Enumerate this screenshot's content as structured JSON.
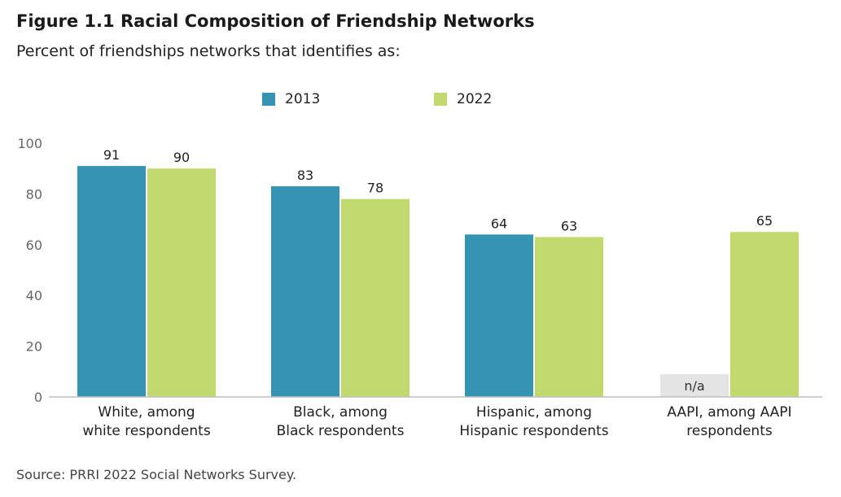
{
  "header": {
    "title": "Figure 1.1  Racial Composition of Friendship Networks",
    "subtitle": "Percent of friendships networks that identifies as:"
  },
  "footer": {
    "source": "Source: PRRI 2022 Social Networks Survey."
  },
  "chart_data": {
    "type": "bar",
    "title": "Figure 1.1  Racial Composition of Friendship Networks",
    "subtitle": "Percent of friendships networks that identifies as:",
    "categories": [
      [
        "White, among",
        "white respondents"
      ],
      [
        "Black, among",
        "Black respondents"
      ],
      [
        "Hispanic, among",
        "Hispanic respondents"
      ],
      [
        "AAPI, among AAPI",
        "respondents"
      ]
    ],
    "series": [
      {
        "name": "2013",
        "color": "#3494b1",
        "values": [
          91,
          83,
          64,
          null
        ],
        "labels": [
          "91",
          "83",
          "64",
          "n/a"
        ]
      },
      {
        "name": "2022",
        "color": "#c2d96e",
        "values": [
          90,
          78,
          63,
          65
        ],
        "labels": [
          "90",
          "78",
          "63",
          "65"
        ]
      }
    ],
    "na_color": "#e4e4e4",
    "yticks": [
      0,
      20,
      40,
      60,
      80,
      100
    ],
    "ylim": [
      0,
      100
    ],
    "legend_position": "top",
    "grid": false
  }
}
